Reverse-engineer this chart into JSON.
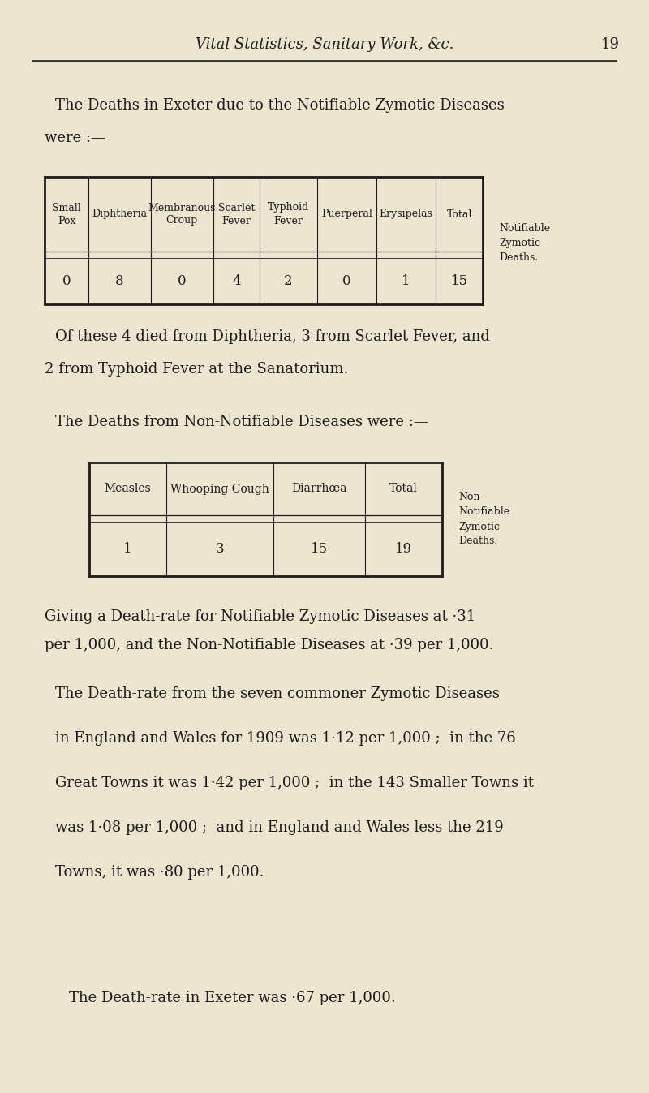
{
  "bg_color": "#ede5d0",
  "text_color": "#1c1c1c",
  "page_header": "Vital Statistics, Sanitary Work, &c.",
  "page_number": "19",
  "para1_line1": "The Deaths in Exeter due to the Notifiable Zymotic Diseases",
  "para1_line2": "were :—",
  "table1_headers": [
    "Small\nPox",
    "Diphtheria",
    "Membranous\nCroup",
    "Scarlet\nFever",
    "Typhoid\nFever",
    "Puerperal",
    "Erysipelas",
    "Total"
  ],
  "table1_values": [
    "0",
    "8",
    "0",
    "4",
    "2",
    "0",
    "1",
    "15"
  ],
  "table1_col_weights": [
    0.85,
    1.2,
    1.2,
    0.9,
    1.1,
    1.15,
    1.15,
    0.9
  ],
  "table1_side_label": [
    "Notifiable",
    "Zymotic",
    "Deaths."
  ],
  "para2_line1": "Of these 4 died from Diphtheria, 3 from Scarlet Fever, and",
  "para2_line2": "2 from Typhoid Fever at the Sanatorium.",
  "para3": "The Deaths from Non-Notifiable Diseases were :—",
  "table2_headers": [
    "Measles",
    "Whooping Cough",
    "Diarrhœa",
    "Total"
  ],
  "table2_values": [
    "1",
    "3",
    "15",
    "19"
  ],
  "table2_col_weights": [
    1.0,
    1.4,
    1.2,
    1.0
  ],
  "table2_side_label": [
    "Non-",
    "Notifiable",
    "Zymotic",
    "Deaths."
  ],
  "para4_line1": "Giving a Death-rate for Notifiable Zymotic Diseases at ·31",
  "para4_line2": "per 1,000, and the Non-Notifiable Diseases at ·39 per 1,000.",
  "para5_line1": "The Death-rate from the seven commoner Zymotic Diseases",
  "para5_line2": "in England and Wales for 1909 was 1·12 per 1,000 ;  in the 76",
  "para5_line3": "Great Towns it was 1·42 per 1,000 ;  in the 143 Smaller Towns it",
  "para5_line4": "was 1·08 per 1,000 ;  and in England and Wales less the 219",
  "para5_line5": "Towns, it was ·80 per 1,000.",
  "para6": "The Death-rate in Exeter was ·67 per 1,000."
}
